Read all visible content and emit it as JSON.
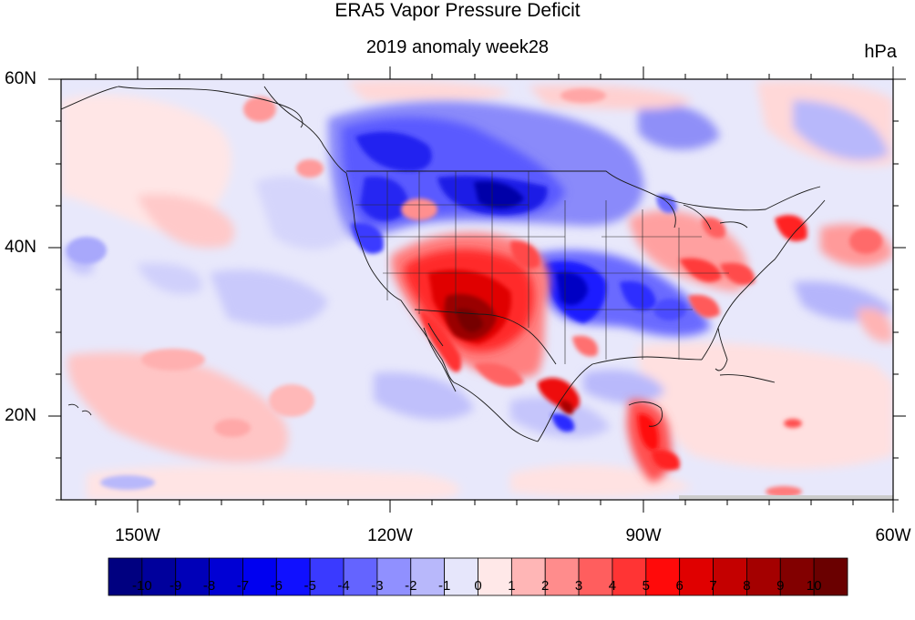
{
  "title": "ERA5 Vapor Pressure Deficit",
  "subtitle": "2019 anomaly week28",
  "units": "hPa",
  "map": {
    "projection": "cylindrical-equidistant",
    "lon_range": [
      -160,
      -60
    ],
    "lat_range": [
      10,
      60
    ],
    "lat_labels": [
      "20N",
      "40N",
      "60N"
    ],
    "lon_labels": [
      "150W",
      "120W",
      "90W",
      "60W"
    ],
    "ocean_fill": "#e8e8fb",
    "anomalies": [
      {
        "region": "Southwest US / Arizona-New Mexico",
        "sign": "positive",
        "peak": 10
      },
      {
        "region": "Northern Plains / Montana-Dakotas",
        "sign": "negative",
        "peak": -9
      },
      {
        "region": "Pacific Northwest",
        "sign": "negative",
        "peak": -7
      },
      {
        "region": "Southern Plains / Oklahoma-Texas",
        "sign": "negative",
        "peak": -8
      },
      {
        "region": "Canadian Prairies",
        "sign": "negative",
        "peak": -6
      },
      {
        "region": "Texas Gulf coast",
        "sign": "positive",
        "peak": 7
      },
      {
        "region": "Southern Mexico",
        "sign": "positive",
        "peak": 6
      },
      {
        "region": "Mid-Atlantic / Ohio Valley",
        "sign": "positive",
        "peak": 5
      },
      {
        "region": "New England",
        "sign": "positive",
        "peak": 6
      },
      {
        "region": "Central Pacific subtropics",
        "sign": "positive",
        "peak": 2
      }
    ]
  },
  "colorbar": {
    "labels": [
      "-10",
      "-9",
      "-8",
      "-7",
      "-6",
      "-5",
      "-4",
      "-3",
      "-2",
      "-1",
      "0",
      "1",
      "2",
      "3",
      "4",
      "5",
      "6",
      "7",
      "8",
      "9",
      "10"
    ],
    "colors": [
      "#000080",
      "#00009c",
      "#0000b8",
      "#0000d4",
      "#0000f0",
      "#1010ff",
      "#3a3aff",
      "#6464ff",
      "#9090ff",
      "#b8b8fb",
      "#e6e6fb",
      "#ffe8e8",
      "#ffb6b6",
      "#ff8c8c",
      "#ff5e5e",
      "#ff3434",
      "#ff0a0a",
      "#e00000",
      "#c40000",
      "#a40000",
      "#820000",
      "#6a0000"
    ]
  }
}
